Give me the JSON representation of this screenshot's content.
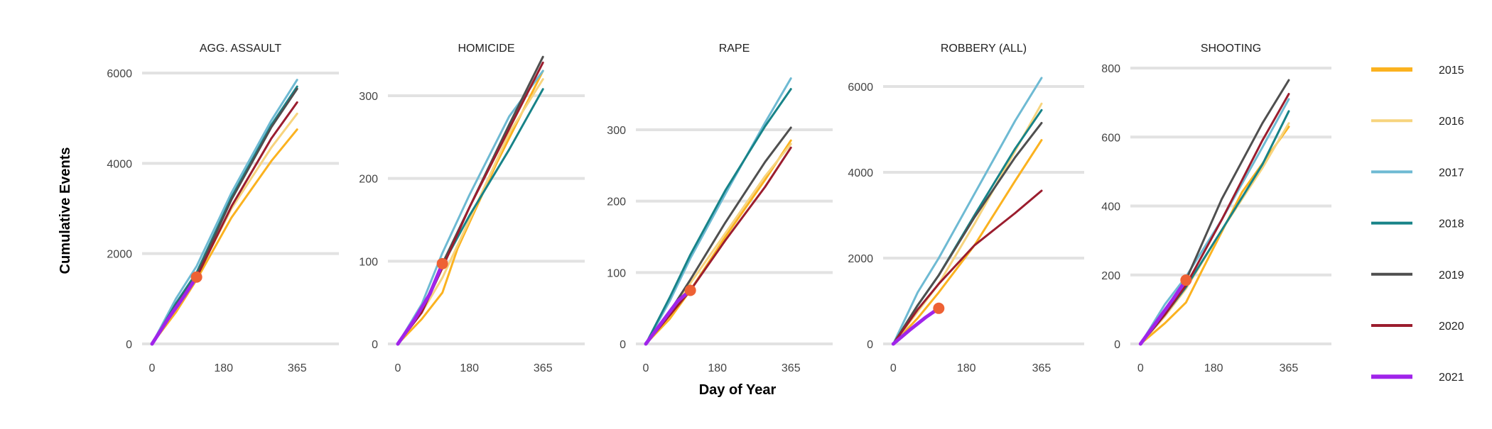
{
  "chart_data": {
    "type": "line",
    "ylabel": "Cumulative Events",
    "xlabel": "Day of Year",
    "x_ticks": [
      0,
      180,
      365
    ],
    "xlim": [
      -25,
      470
    ],
    "grid": "horizontal",
    "legend_position": "right",
    "legend": [
      {
        "name": "2015",
        "color": "#FBB21F"
      },
      {
        "name": "2016",
        "color": "#F7D47E"
      },
      {
        "name": "2017",
        "color": "#6EBAD3"
      },
      {
        "name": "2018",
        "color": "#178388"
      },
      {
        "name": "2019",
        "color": "#4F4F4F"
      },
      {
        "name": "2020",
        "color": "#9B1D2E"
      },
      {
        "name": "2021",
        "color": "#A024EA"
      }
    ],
    "current_marker_color": "#EE6134",
    "facets": [
      {
        "title": "AGG. ASSAULT",
        "ylim": [
          0,
          6000
        ],
        "y_ticks": [
          0,
          2000,
          4000,
          6000
        ],
        "marker": {
          "x": 112,
          "y": 1480
        },
        "series": [
          {
            "name": "2015",
            "x": [
              0,
              60,
              112,
              200,
              300,
              365
            ],
            "y": [
              0,
              700,
              1420,
              2800,
              4050,
              4750
            ]
          },
          {
            "name": "2016",
            "x": [
              0,
              60,
              112,
              200,
              300,
              365
            ],
            "y": [
              0,
              800,
              1500,
              3000,
              4350,
              5100
            ]
          },
          {
            "name": "2017",
            "x": [
              0,
              60,
              112,
              200,
              300,
              365
            ],
            "y": [
              0,
              1000,
              1720,
              3350,
              4950,
              5850
            ]
          },
          {
            "name": "2018",
            "x": [
              0,
              60,
              112,
              200,
              300,
              365
            ],
            "y": [
              0,
              900,
              1580,
              3250,
              4850,
              5700
            ]
          },
          {
            "name": "2019",
            "x": [
              0,
              60,
              112,
              200,
              300,
              365
            ],
            "y": [
              0,
              850,
              1520,
              3200,
              4800,
              5650
            ]
          },
          {
            "name": "2020",
            "x": [
              0,
              60,
              112,
              200,
              300,
              365
            ],
            "y": [
              0,
              800,
              1470,
              3050,
              4550,
              5350
            ]
          },
          {
            "name": "2021",
            "x": [
              0,
              40,
              80,
              112
            ],
            "y": [
              0,
              550,
              1050,
              1480
            ]
          }
        ]
      },
      {
        "title": "HOMICIDE",
        "ylim": [
          0,
          360
        ],
        "y_ticks": [
          0,
          100,
          200,
          300
        ],
        "marker": {
          "x": 112,
          "y": 97
        },
        "series": [
          {
            "name": "2015",
            "x": [
              0,
              60,
              112,
              150,
              250,
              365
            ],
            "y": [
              0,
              30,
              62,
              115,
              220,
              330
            ]
          },
          {
            "name": "2016",
            "x": [
              0,
              60,
              112,
              180,
              280,
              365
            ],
            "y": [
              0,
              38,
              80,
              150,
              255,
              320
            ]
          },
          {
            "name": "2017",
            "x": [
              0,
              60,
              112,
              180,
              280,
              365
            ],
            "y": [
              0,
              48,
              110,
              180,
              275,
              330
            ]
          },
          {
            "name": "2018",
            "x": [
              0,
              60,
              112,
              180,
              280,
              365
            ],
            "y": [
              0,
              42,
              95,
              155,
              235,
              308
            ]
          },
          {
            "name": "2019",
            "x": [
              0,
              60,
              112,
              180,
              280,
              365
            ],
            "y": [
              0,
              40,
              97,
              165,
              265,
              347
            ]
          },
          {
            "name": "2020",
            "x": [
              0,
              60,
              112,
              180,
              280,
              365
            ],
            "y": [
              0,
              38,
              92,
              165,
              260,
              340
            ]
          },
          {
            "name": "2021",
            "x": [
              0,
              40,
              80,
              112
            ],
            "y": [
              0,
              28,
              60,
              97
            ]
          }
        ]
      },
      {
        "title": "RAPE",
        "ylim": [
          0,
          375
        ],
        "y_ticks": [
          0,
          100,
          200,
          300
        ],
        "marker": {
          "x": 112,
          "y": 75
        },
        "series": [
          {
            "name": "2015",
            "x": [
              0,
              60,
              112,
              200,
              300,
              365
            ],
            "y": [
              0,
              35,
              75,
              150,
              230,
              285
            ]
          },
          {
            "name": "2016",
            "x": [
              0,
              60,
              112,
              200,
              300,
              365
            ],
            "y": [
              0,
              40,
              85,
              155,
              235,
              280
            ]
          },
          {
            "name": "2017",
            "x": [
              0,
              60,
              112,
              200,
              300,
              365
            ],
            "y": [
              0,
              60,
              120,
              210,
              310,
              372
            ]
          },
          {
            "name": "2018",
            "x": [
              0,
              60,
              112,
              200,
              300,
              365
            ],
            "y": [
              0,
              65,
              125,
              215,
              305,
              357
            ]
          },
          {
            "name": "2019",
            "x": [
              0,
              60,
              112,
              200,
              300,
              365
            ],
            "y": [
              0,
              45,
              90,
              170,
              255,
              303
            ]
          },
          {
            "name": "2020",
            "x": [
              0,
              60,
              112,
              200,
              300,
              365
            ],
            "y": [
              0,
              40,
              75,
              145,
              220,
              275
            ]
          },
          {
            "name": "2021",
            "x": [
              0,
              40,
              80,
              112
            ],
            "y": [
              0,
              30,
              60,
              75
            ]
          }
        ]
      },
      {
        "title": "ROBBERY (ALL)",
        "ylim": [
          0,
          6200
        ],
        "y_ticks": [
          0,
          2000,
          4000,
          6000
        ],
        "marker": {
          "x": 112,
          "y": 830
        },
        "series": [
          {
            "name": "2015",
            "x": [
              0,
              60,
              112,
              200,
              300,
              365
            ],
            "y": [
              0,
              600,
              1200,
              2300,
              3800,
              4750
            ]
          },
          {
            "name": "2016",
            "x": [
              0,
              60,
              112,
              200,
              300,
              365
            ],
            "y": [
              0,
              750,
              1400,
              2800,
              4500,
              5600
            ]
          },
          {
            "name": "2017",
            "x": [
              0,
              60,
              112,
              200,
              300,
              365
            ],
            "y": [
              0,
              1200,
              2000,
              3500,
              5200,
              6200
            ]
          },
          {
            "name": "2018",
            "x": [
              0,
              60,
              112,
              200,
              300,
              365
            ],
            "y": [
              0,
              900,
              1600,
              3000,
              4550,
              5450
            ]
          },
          {
            "name": "2019",
            "x": [
              0,
              60,
              112,
              200,
              300,
              365
            ],
            "y": [
              0,
              900,
              1600,
              2950,
              4350,
              5150
            ]
          },
          {
            "name": "2020",
            "x": [
              0,
              60,
              112,
              200,
              300,
              365
            ],
            "y": [
              0,
              800,
              1400,
              2300,
              3050,
              3570
            ]
          },
          {
            "name": "2021",
            "x": [
              0,
              40,
              80,
              112
            ],
            "y": [
              0,
              320,
              620,
              830
            ]
          }
        ]
      },
      {
        "title": "SHOOTING",
        "ylim": [
          0,
          800
        ],
        "y_ticks": [
          0,
          200,
          400,
          600,
          800
        ],
        "marker": {
          "x": 112,
          "y": 185
        },
        "series": [
          {
            "name": "2015",
            "x": [
              0,
              60,
              112,
              150,
              250,
              365
            ],
            "y": [
              0,
              60,
              120,
              210,
              440,
              630
            ]
          },
          {
            "name": "2016",
            "x": [
              0,
              60,
              112,
              200,
              300,
              365
            ],
            "y": [
              0,
              80,
              160,
              330,
              510,
              640
            ]
          },
          {
            "name": "2017",
            "x": [
              0,
              60,
              112,
              200,
              300,
              365
            ],
            "y": [
              0,
              115,
              195,
              360,
              570,
              710
            ]
          },
          {
            "name": "2018",
            "x": [
              0,
              60,
              112,
              200,
              300,
              365
            ],
            "y": [
              0,
              85,
              165,
              330,
              520,
              675
            ]
          },
          {
            "name": "2019",
            "x": [
              0,
              60,
              112,
              200,
              300,
              365
            ],
            "y": [
              0,
              90,
              185,
              420,
              640,
              765
            ]
          },
          {
            "name": "2020",
            "x": [
              0,
              60,
              112,
              200,
              300,
              365
            ],
            "y": [
              0,
              85,
              170,
              360,
              590,
              725
            ]
          },
          {
            "name": "2021",
            "x": [
              0,
              40,
              80,
              112
            ],
            "y": [
              0,
              65,
              130,
              185
            ]
          }
        ]
      }
    ]
  }
}
